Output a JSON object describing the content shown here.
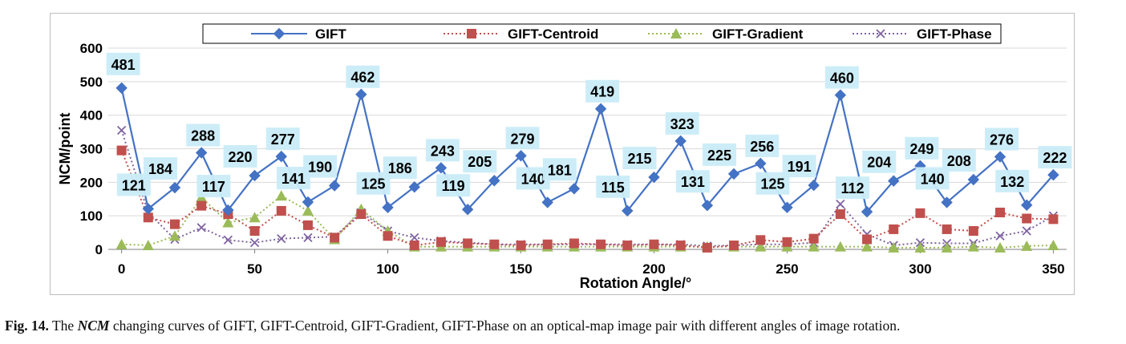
{
  "caption": {
    "fig_label": "Fig. 14.",
    "pre": " The ",
    "em": "NCM",
    "post": " changing curves of GIFT, GIFT-Centroid, GIFT-Gradient, GIFT-Phase on an optical-map image pair with different angles of image rotation."
  },
  "chart_data": {
    "type": "line",
    "title": "",
    "xlabel": "Rotation Angle/°",
    "ylabel": "NCM/point",
    "xlim": [
      -5,
      355
    ],
    "ylim": [
      0,
      600
    ],
    "xticks": [
      0,
      50,
      100,
      150,
      200,
      250,
      300,
      350
    ],
    "yticks": [
      0,
      100,
      200,
      300,
      400,
      500,
      600
    ],
    "grid": "horizontal",
    "legend_position": "top",
    "x": [
      0,
      10,
      20,
      30,
      40,
      50,
      60,
      70,
      80,
      90,
      100,
      110,
      120,
      130,
      140,
      150,
      160,
      170,
      180,
      190,
      200,
      210,
      220,
      230,
      240,
      250,
      260,
      270,
      280,
      290,
      300,
      310,
      320,
      330,
      340,
      350
    ],
    "series": [
      {
        "name": "GIFT",
        "color": "#4472c4",
        "marker": "diamond",
        "dash": "solid",
        "show_labels": true,
        "values": [
          481,
          121,
          184,
          288,
          117,
          220,
          277,
          141,
          190,
          462,
          125,
          186,
          243,
          119,
          205,
          279,
          140,
          181,
          419,
          115,
          215,
          323,
          131,
          225,
          256,
          125,
          191,
          460,
          112,
          204,
          249,
          140,
          208,
          276,
          132,
          222
        ]
      },
      {
        "name": "GIFT-Centroid",
        "color": "#c0504d",
        "marker": "square",
        "dash": "dotted",
        "show_labels": false,
        "values": [
          295,
          95,
          75,
          130,
          105,
          55,
          115,
          72,
          35,
          105,
          40,
          12,
          22,
          18,
          15,
          12,
          15,
          18,
          15,
          12,
          15,
          12,
          5,
          12,
          28,
          22,
          32,
          105,
          30,
          60,
          108,
          60,
          55,
          110,
          92,
          90
        ]
      },
      {
        "name": "GIFT-Gradient",
        "color": "#9bbb59",
        "marker": "triangle",
        "dash": "dotted",
        "show_labels": false,
        "values": [
          15,
          12,
          40,
          155,
          80,
          95,
          160,
          115,
          30,
          120,
          55,
          8,
          8,
          8,
          8,
          8,
          8,
          8,
          8,
          8,
          8,
          8,
          8,
          8,
          8,
          8,
          8,
          8,
          8,
          5,
          5,
          5,
          8,
          5,
          10,
          12
        ]
      },
      {
        "name": "GIFT-Phase",
        "color": "#8064a2",
        "marker": "x",
        "dash": "dotted",
        "show_labels": false,
        "values": [
          355,
          110,
          30,
          65,
          28,
          20,
          32,
          35,
          38,
          110,
          55,
          35,
          25,
          20,
          15,
          15,
          15,
          15,
          15,
          15,
          15,
          15,
          10,
          12,
          15,
          15,
          20,
          135,
          45,
          12,
          20,
          18,
          18,
          40,
          55,
          100
        ]
      }
    ]
  }
}
